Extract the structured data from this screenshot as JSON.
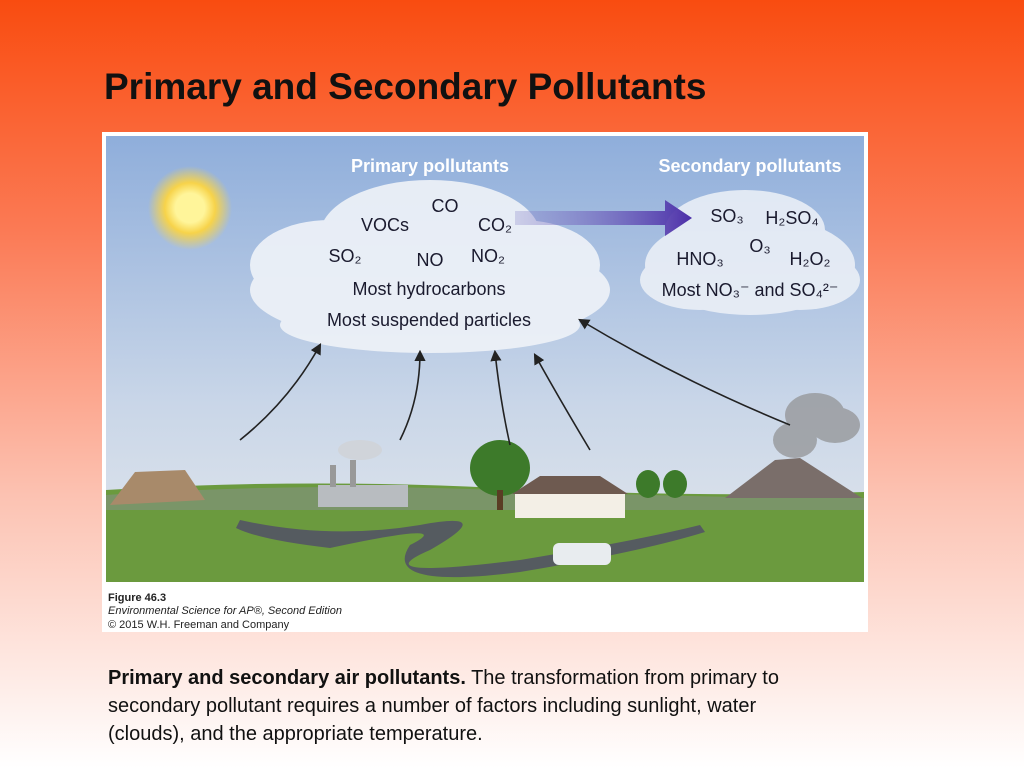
{
  "title": "Primary and Secondary Pollutants",
  "figure": {
    "primary": {
      "heading": "Primary pollutants",
      "items": [
        "CO",
        "VOCs",
        "CO₂",
        "SO₂",
        "NO",
        "NO₂",
        "Most hydrocarbons",
        "Most suspended particles"
      ]
    },
    "secondary": {
      "heading": "Secondary pollutants",
      "items": [
        "SO₃",
        "H₂SO₄",
        "O₃",
        "HNO₃",
        "H₂O₂",
        "Most NO₃⁻ and SO₄²⁻"
      ]
    },
    "credit": {
      "figure": "Figure 46.3",
      "book": "Environmental Science for AP®, Second Edition",
      "copyright": "© 2015 W.H. Freeman and Company"
    }
  },
  "caption": {
    "lead": "Primary and secondary air pollutants.",
    "body": " The transformation from primary to secondary pollutant requires a number of factors including sunlight, water (clouds), and the appropriate temperature."
  }
}
